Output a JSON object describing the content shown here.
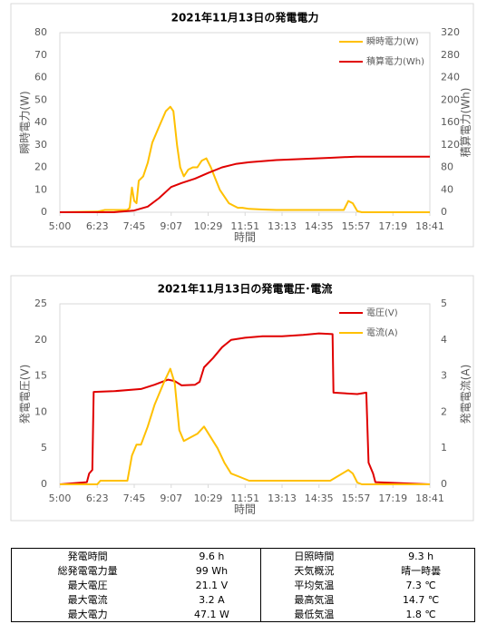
{
  "chart_data": [
    {
      "type": "line",
      "title": "2021年11月13日の発電電力",
      "xlabel": "時間",
      "ylabel": "瞬時電力(W)",
      "y2label": "積算電力(Wh)",
      "xlim": [
        "5:00",
        "18:41"
      ],
      "xticks": [
        "5:00",
        "6:23",
        "7:45",
        "9:07",
        "10:29",
        "11:51",
        "13:13",
        "14:35",
        "15:57",
        "17:19",
        "18:41"
      ],
      "ylim": [
        0,
        80
      ],
      "yticks": [
        0,
        10,
        20,
        30,
        40,
        50,
        60,
        70,
        80
      ],
      "y2lim": [
        0,
        320
      ],
      "y2ticks": [
        0,
        40,
        80,
        120,
        160,
        200,
        240,
        280,
        320
      ],
      "grid": false,
      "legend": "upper right",
      "series": [
        {
          "name": "瞬時電力(W)",
          "color": "#ffc000",
          "x": [
            "5:00",
            "6:23",
            "6:40",
            "7:30",
            "7:35",
            "7:40",
            "7:45",
            "7:50",
            "7:55",
            "8:05",
            "8:15",
            "8:25",
            "8:40",
            "8:55",
            "9:05",
            "9:12",
            "9:20",
            "9:27",
            "9:35",
            "9:45",
            "9:55",
            "10:05",
            "10:15",
            "10:25",
            "10:35",
            "10:45",
            "10:55",
            "11:05",
            "11:15",
            "11:25",
            "11:35",
            "11:45",
            "12:00",
            "12:30",
            "13:00",
            "14:00",
            "15:00",
            "15:30",
            "15:40",
            "15:50",
            "16:00",
            "16:10",
            "18:41"
          ],
          "values": [
            0,
            0.3,
            1,
            1,
            2,
            11,
            5,
            4,
            14,
            16,
            22,
            31,
            38,
            45,
            47,
            45,
            30,
            20,
            16,
            19,
            20,
            20,
            23,
            24,
            20,
            15,
            10,
            7,
            4,
            3,
            2,
            2,
            1.5,
            1.2,
            1,
            1,
            1,
            1,
            5,
            4,
            0.5,
            0,
            0
          ]
        },
        {
          "name": "積算電力(Wh)",
          "color": "#e00000",
          "axis": "y2",
          "x": [
            "5:00",
            "7:00",
            "7:45",
            "8:15",
            "8:40",
            "9:07",
            "9:30",
            "10:00",
            "10:29",
            "11:00",
            "11:30",
            "12:00",
            "13:00",
            "14:00",
            "15:00",
            "15:57",
            "18:41"
          ],
          "values": [
            0,
            0,
            3,
            10,
            25,
            45,
            52,
            60,
            70,
            80,
            86,
            89,
            93,
            95,
            97,
            99,
            99
          ]
        }
      ]
    },
    {
      "type": "line",
      "title": "2021年11月13日の発電電圧･電流",
      "xlabel": "時間",
      "ylabel": "発電電圧(V)",
      "y2label": "発電電流(A)",
      "xlim": [
        "5:00",
        "18:41"
      ],
      "xticks": [
        "5:00",
        "6:23",
        "7:45",
        "9:07",
        "10:29",
        "11:51",
        "13:13",
        "14:35",
        "15:57",
        "17:19",
        "18:41"
      ],
      "ylim": [
        0,
        25
      ],
      "yticks": [
        0,
        5,
        10,
        15,
        20,
        25
      ],
      "y2lim": [
        0,
        5
      ],
      "y2ticks": [
        0,
        1,
        2,
        3,
        4,
        5
      ],
      "grid": false,
      "legend": "upper right",
      "series": [
        {
          "name": "電圧(V)",
          "color": "#e00000",
          "x": [
            "5:00",
            "6:00",
            "6:05",
            "6:12",
            "6:15",
            "7:00",
            "8:00",
            "8:30",
            "9:00",
            "9:15",
            "9:30",
            "10:00",
            "10:10",
            "10:20",
            "10:40",
            "11:00",
            "11:20",
            "11:51",
            "12:30",
            "13:13",
            "14:00",
            "14:35",
            "15:05",
            "15:07",
            "16:00",
            "16:20",
            "16:25",
            "16:35",
            "16:40",
            "18:41"
          ],
          "values": [
            0,
            0.3,
            1.5,
            2,
            12.8,
            12.9,
            13.2,
            13.8,
            14.5,
            14.3,
            13.7,
            13.8,
            14.2,
            16.2,
            17.5,
            19,
            20,
            20.3,
            20.5,
            20.5,
            20.7,
            20.9,
            20.8,
            12.7,
            12.5,
            12.7,
            3,
            1.5,
            0.3,
            0
          ]
        },
        {
          "name": "電流(A)",
          "color": "#ffc000",
          "axis": "y2",
          "x": [
            "5:00",
            "6:23",
            "6:30",
            "7:30",
            "7:40",
            "7:50",
            "8:00",
            "8:15",
            "8:30",
            "8:50",
            "9:05",
            "9:15",
            "9:25",
            "9:35",
            "9:50",
            "10:05",
            "10:20",
            "10:35",
            "10:50",
            "11:05",
            "11:20",
            "11:40",
            "12:00",
            "13:00",
            "15:00",
            "15:40",
            "15:50",
            "16:00",
            "16:10",
            "18:41"
          ],
          "values": [
            0,
            0,
            0.1,
            0.1,
            0.8,
            1.1,
            1.1,
            1.6,
            2.2,
            2.8,
            3.2,
            2.8,
            1.5,
            1.2,
            1.3,
            1.4,
            1.6,
            1.3,
            1,
            0.6,
            0.3,
            0.2,
            0.1,
            0.1,
            0.1,
            0.4,
            0.3,
            0.05,
            0,
            0
          ]
        }
      ]
    }
  ],
  "table": {
    "rows": [
      [
        "発電時間",
        "9.6 h",
        "日照時間",
        "9.3 h"
      ],
      [
        "総発電電力量",
        "99 Wh",
        "天気概況",
        "晴一時曇"
      ],
      [
        "最大電圧",
        "21.1 V",
        "平均気温",
        "7.3 ℃"
      ],
      [
        "最大電流",
        "3.2 A",
        "最高気温",
        "14.7 ℃"
      ],
      [
        "最大電力",
        "47.1 W",
        "最低気温",
        "1.8 ℃"
      ]
    ]
  }
}
